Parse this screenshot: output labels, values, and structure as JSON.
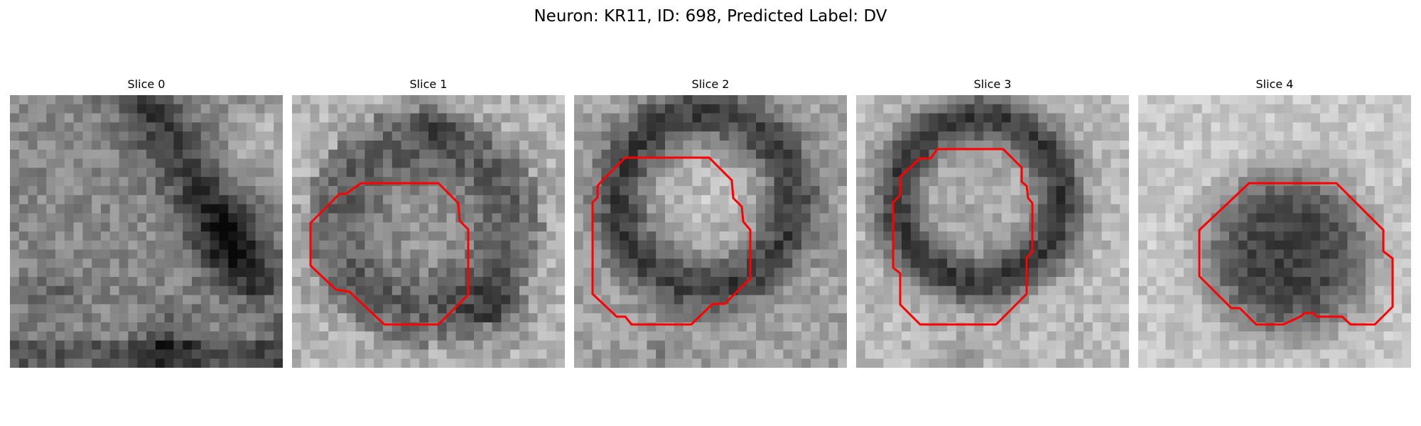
{
  "figure": {
    "suptitle": "Neuron: KR11, ID: 698, Predicted Label: DV",
    "panels": [
      {
        "title": "Slice 0"
      },
      {
        "title": "Slice 1"
      },
      {
        "title": "Slice 2"
      },
      {
        "title": "Slice 3"
      },
      {
        "title": "Slice 4"
      }
    ]
  },
  "colors": {
    "contour": "#ff0000",
    "background": "#ffffff"
  }
}
